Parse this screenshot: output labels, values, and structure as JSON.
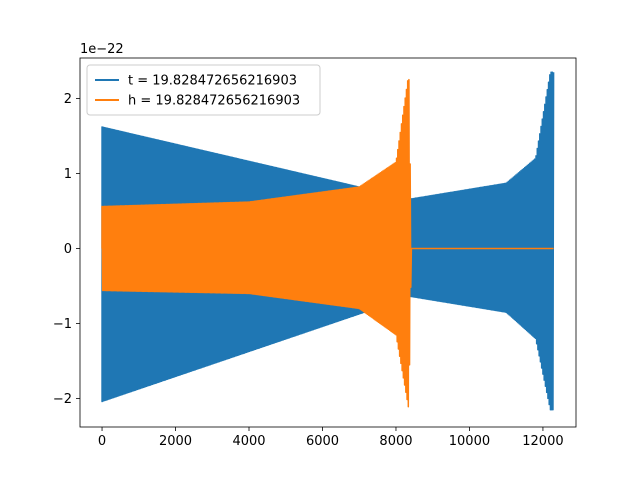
{
  "chart_data": {
    "type": "line",
    "title": "",
    "xlabel": "",
    "ylabel": "",
    "offset_label": "1e−22",
    "xlim": [
      -600,
      12900
    ],
    "ylim": [
      -2.38,
      2.54
    ],
    "x_ticks": [
      0,
      2000,
      4000,
      6000,
      8000,
      10000,
      12000
    ],
    "x_tick_labels": [
      "0",
      "2000",
      "4000",
      "6000",
      "8000",
      "10000",
      "12000"
    ],
    "y_ticks": [
      -2,
      -1,
      0,
      1,
      2
    ],
    "y_tick_labels": [
      "−2",
      "−1",
      "0",
      "1",
      "2"
    ],
    "grid": false,
    "legend_position": "upper-left",
    "series": [
      {
        "name": "t = 19.828472656216903",
        "color": "#1f77b4",
        "x_range": [
          0,
          12290
        ],
        "description_points": [
          {
            "x": 0,
            "y_min": -2.04,
            "y_max": 1.62
          },
          {
            "x": 8400,
            "y_min": -0.64,
            "y_max": 0.66
          },
          {
            "x": 11000,
            "y_min": -0.85,
            "y_max": 0.87
          },
          {
            "x": 11800,
            "y_min": -1.2,
            "y_max": 1.2
          },
          {
            "x": 12200,
            "y_min": -2.15,
            "y_max": 2.35
          }
        ]
      },
      {
        "name": "h = 19.828472656216903",
        "color": "#ff7f0e",
        "x_range": [
          0,
          12290
        ],
        "description_points": [
          {
            "x": 0,
            "y_min": -0.56,
            "y_max": 0.56
          },
          {
            "x": 4000,
            "y_min": -0.6,
            "y_max": 0.62
          },
          {
            "x": 7000,
            "y_min": -0.8,
            "y_max": 0.82
          },
          {
            "x": 8000,
            "y_min": -1.15,
            "y_max": 1.15
          },
          {
            "x": 8350,
            "y_min": -2.15,
            "y_max": 2.34
          },
          {
            "x": 8420,
            "y_min": 0,
            "y_max": 0
          },
          {
            "x": 12290,
            "y_min": 0,
            "y_max": 0
          }
        ]
      }
    ]
  }
}
